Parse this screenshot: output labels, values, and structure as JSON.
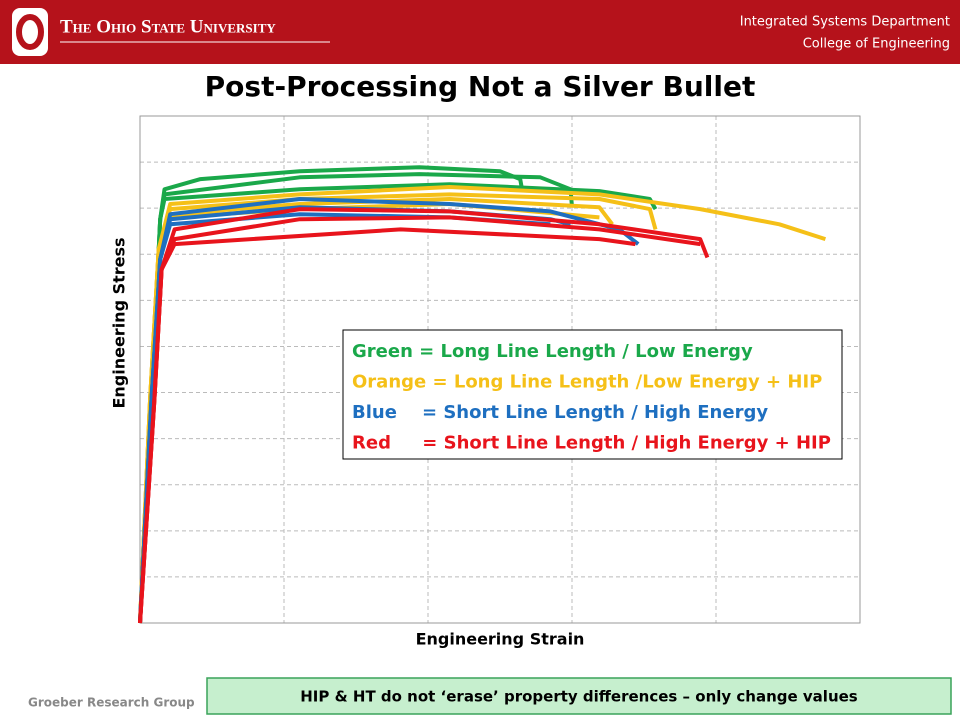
{
  "header": {
    "university": "The Ohio State University",
    "department": "Integrated Systems Department",
    "college": "College of Engineering"
  },
  "chart_data": {
    "type": "line",
    "title": "Post-Processing Not a Silver Bullet",
    "x_label": "Engineering Strain",
    "y_label": "Engineering Stress",
    "xlim": [
      0,
      5
    ],
    "ylim": [
      0,
      11
    ],
    "xticks": [
      0,
      1,
      2,
      3,
      4,
      5
    ],
    "yticks": [
      0,
      1,
      2,
      3,
      4,
      5,
      6,
      7,
      8,
      9,
      10,
      11
    ],
    "grid": true,
    "tick_labels": false,
    "series": [
      {
        "name": "Green = Long Line Length / Low Energy",
        "color": "#1aa84a",
        "curves": [
          {
            "x": [
              0,
              0.08,
              0.14,
              0.17,
              0.42,
              1.11,
              1.94,
              2.5,
              2.64,
              2.65
            ],
            "y": [
              0,
              4.85,
              8.76,
              9.41,
              9.63,
              9.8,
              9.89,
              9.8,
              9.63,
              9.46
            ]
          },
          {
            "x": [
              0,
              0.08,
              0.14,
              0.17,
              1.11,
              1.94,
              2.78,
              2.99,
              3.0
            ],
            "y": [
              0,
              4.85,
              8.76,
              9.3,
              9.67,
              9.74,
              9.67,
              9.41,
              9.02
            ]
          },
          {
            "x": [
              0,
              0.08,
              0.14,
              0.17,
              1.11,
              2.15,
              3.19,
              3.54,
              3.58
            ],
            "y": [
              0,
              4.85,
              8.76,
              9.2,
              9.41,
              9.52,
              9.37,
              9.2,
              8.98
            ]
          }
        ]
      },
      {
        "name": "Orange = Long Line Length /Low Energy + HIP",
        "color": "#f5c018",
        "curves": [
          {
            "x": [
              0,
              0.07,
              0.13,
              0.21,
              1.11,
              2.15,
              3.19,
              3.89,
              4.44,
              4.76
            ],
            "y": [
              0,
              4.85,
              8.11,
              9.09,
              9.3,
              9.46,
              9.3,
              8.98,
              8.65,
              8.33
            ]
          },
          {
            "x": [
              0,
              0.07,
              0.13,
              0.21,
              1.11,
              2.15,
              3.19,
              3.54,
              3.58
            ],
            "y": [
              0,
              4.85,
              8.11,
              8.98,
              9.2,
              9.3,
              9.2,
              8.98,
              8.54
            ]
          },
          {
            "x": [
              0,
              0.07,
              0.13,
              0.21,
              1.11,
              2.15,
              3.19,
              3.28
            ],
            "y": [
              0,
              4.85,
              8.11,
              8.87,
              9.09,
              9.2,
              9.02,
              8.65
            ]
          },
          {
            "x": [
              0,
              0.07,
              0.13,
              0.21,
              1.11,
              2.15,
              3.19
            ],
            "y": [
              0,
              4.85,
              8.11,
              8.8,
              8.98,
              9.09,
              8.8
            ]
          }
        ]
      },
      {
        "name": "Blue    = Short Line Length / High Energy",
        "color": "#1e6fc0",
        "curves": [
          {
            "x": [
              0,
              0.08,
              0.14,
              0.21,
              1.11,
              2.15,
              2.85,
              3.33,
              3.46
            ],
            "y": [
              0,
              4.85,
              7.89,
              8.87,
              9.2,
              9.09,
              8.93,
              8.54,
              8.22
            ]
          },
          {
            "x": [
              0,
              0.08,
              0.14,
              0.21,
              1.11,
              2.15,
              2.85,
              2.99
            ],
            "y": [
              0,
              4.85,
              7.89,
              8.76,
              9.02,
              8.93,
              8.76,
              8.65
            ]
          },
          {
            "x": [
              0,
              0.08,
              0.14,
              0.21,
              1.11,
              2.15,
              2.85
            ],
            "y": [
              0,
              4.85,
              7.89,
              8.65,
              8.87,
              8.8,
              8.65
            ]
          }
        ]
      },
      {
        "name": "Red     = Short Line Length / High Energy + HIP",
        "color": "#e8141c",
        "curves": [
          {
            "x": [
              0,
              0.1,
              0.15,
              0.24,
              1.11,
              2.15,
              3.19,
              3.89,
              3.94
            ],
            "y": [
              0,
              4.85,
              7.67,
              8.54,
              8.98,
              8.93,
              8.65,
              8.33,
              7.93
            ]
          },
          {
            "x": [
              0,
              0.1,
              0.15,
              0.24,
              1.11,
              2.15,
              3.19,
              3.89
            ],
            "y": [
              0,
              4.85,
              7.67,
              8.33,
              8.76,
              8.8,
              8.54,
              8.22
            ]
          },
          {
            "x": [
              0,
              0.1,
              0.15,
              0.24,
              1.81,
              3.19,
              3.44
            ],
            "y": [
              0,
              4.85,
              7.67,
              8.22,
              8.54,
              8.33,
              8.22
            ]
          }
        ]
      }
    ]
  },
  "footer": {
    "group": "Groeber Research Group",
    "note": "HIP & HT do not ‘erase’ property differences – only change values"
  }
}
